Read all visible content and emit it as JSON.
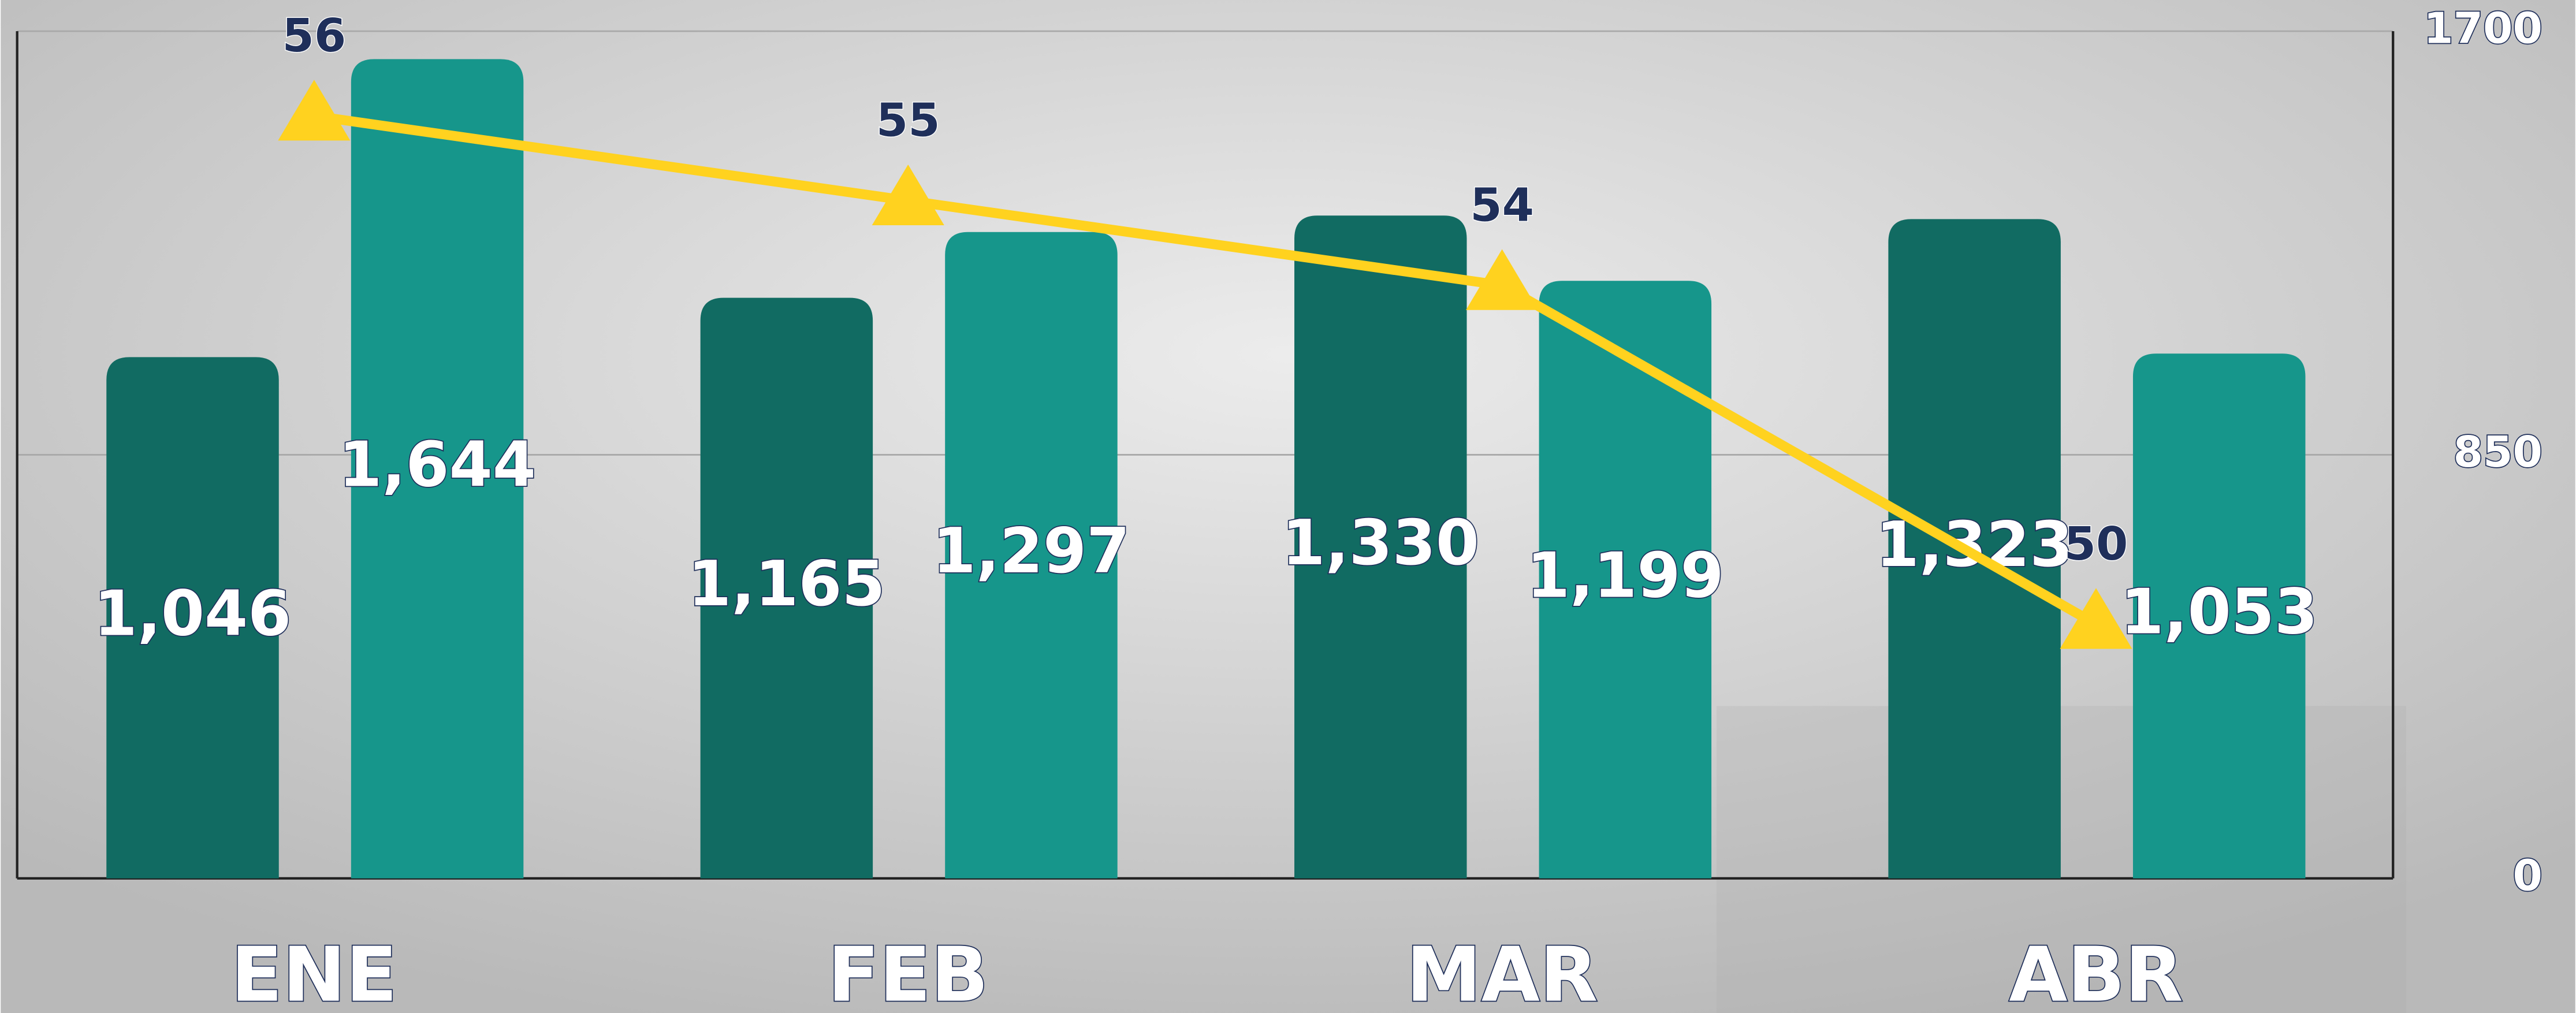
{
  "chart_data": {
    "type": "bar",
    "categories": [
      "ENE",
      "FEB",
      "MAR",
      "ABR"
    ],
    "series": [
      {
        "color": "#116b62",
        "values": [
          1046,
          1165,
          1330,
          1323
        ],
        "value_labels": [
          "1,046",
          "1,165",
          "1,330",
          "1,323"
        ]
      },
      {
        "color": "#16968b",
        "values": [
          1644,
          1297,
          1199,
          1053
        ],
        "value_labels": [
          "1,644",
          "1,297",
          "1,199",
          "1,053"
        ]
      },
      {
        "type": "line",
        "axis": "y2",
        "color": "#ffd21f",
        "values": [
          56,
          55,
          54,
          50
        ]
      }
    ],
    "ylim": [
      0,
      1700
    ],
    "yticks": [
      0,
      850,
      1700
    ],
    "y2lim": [
      47,
      57
    ],
    "grid": true
  }
}
